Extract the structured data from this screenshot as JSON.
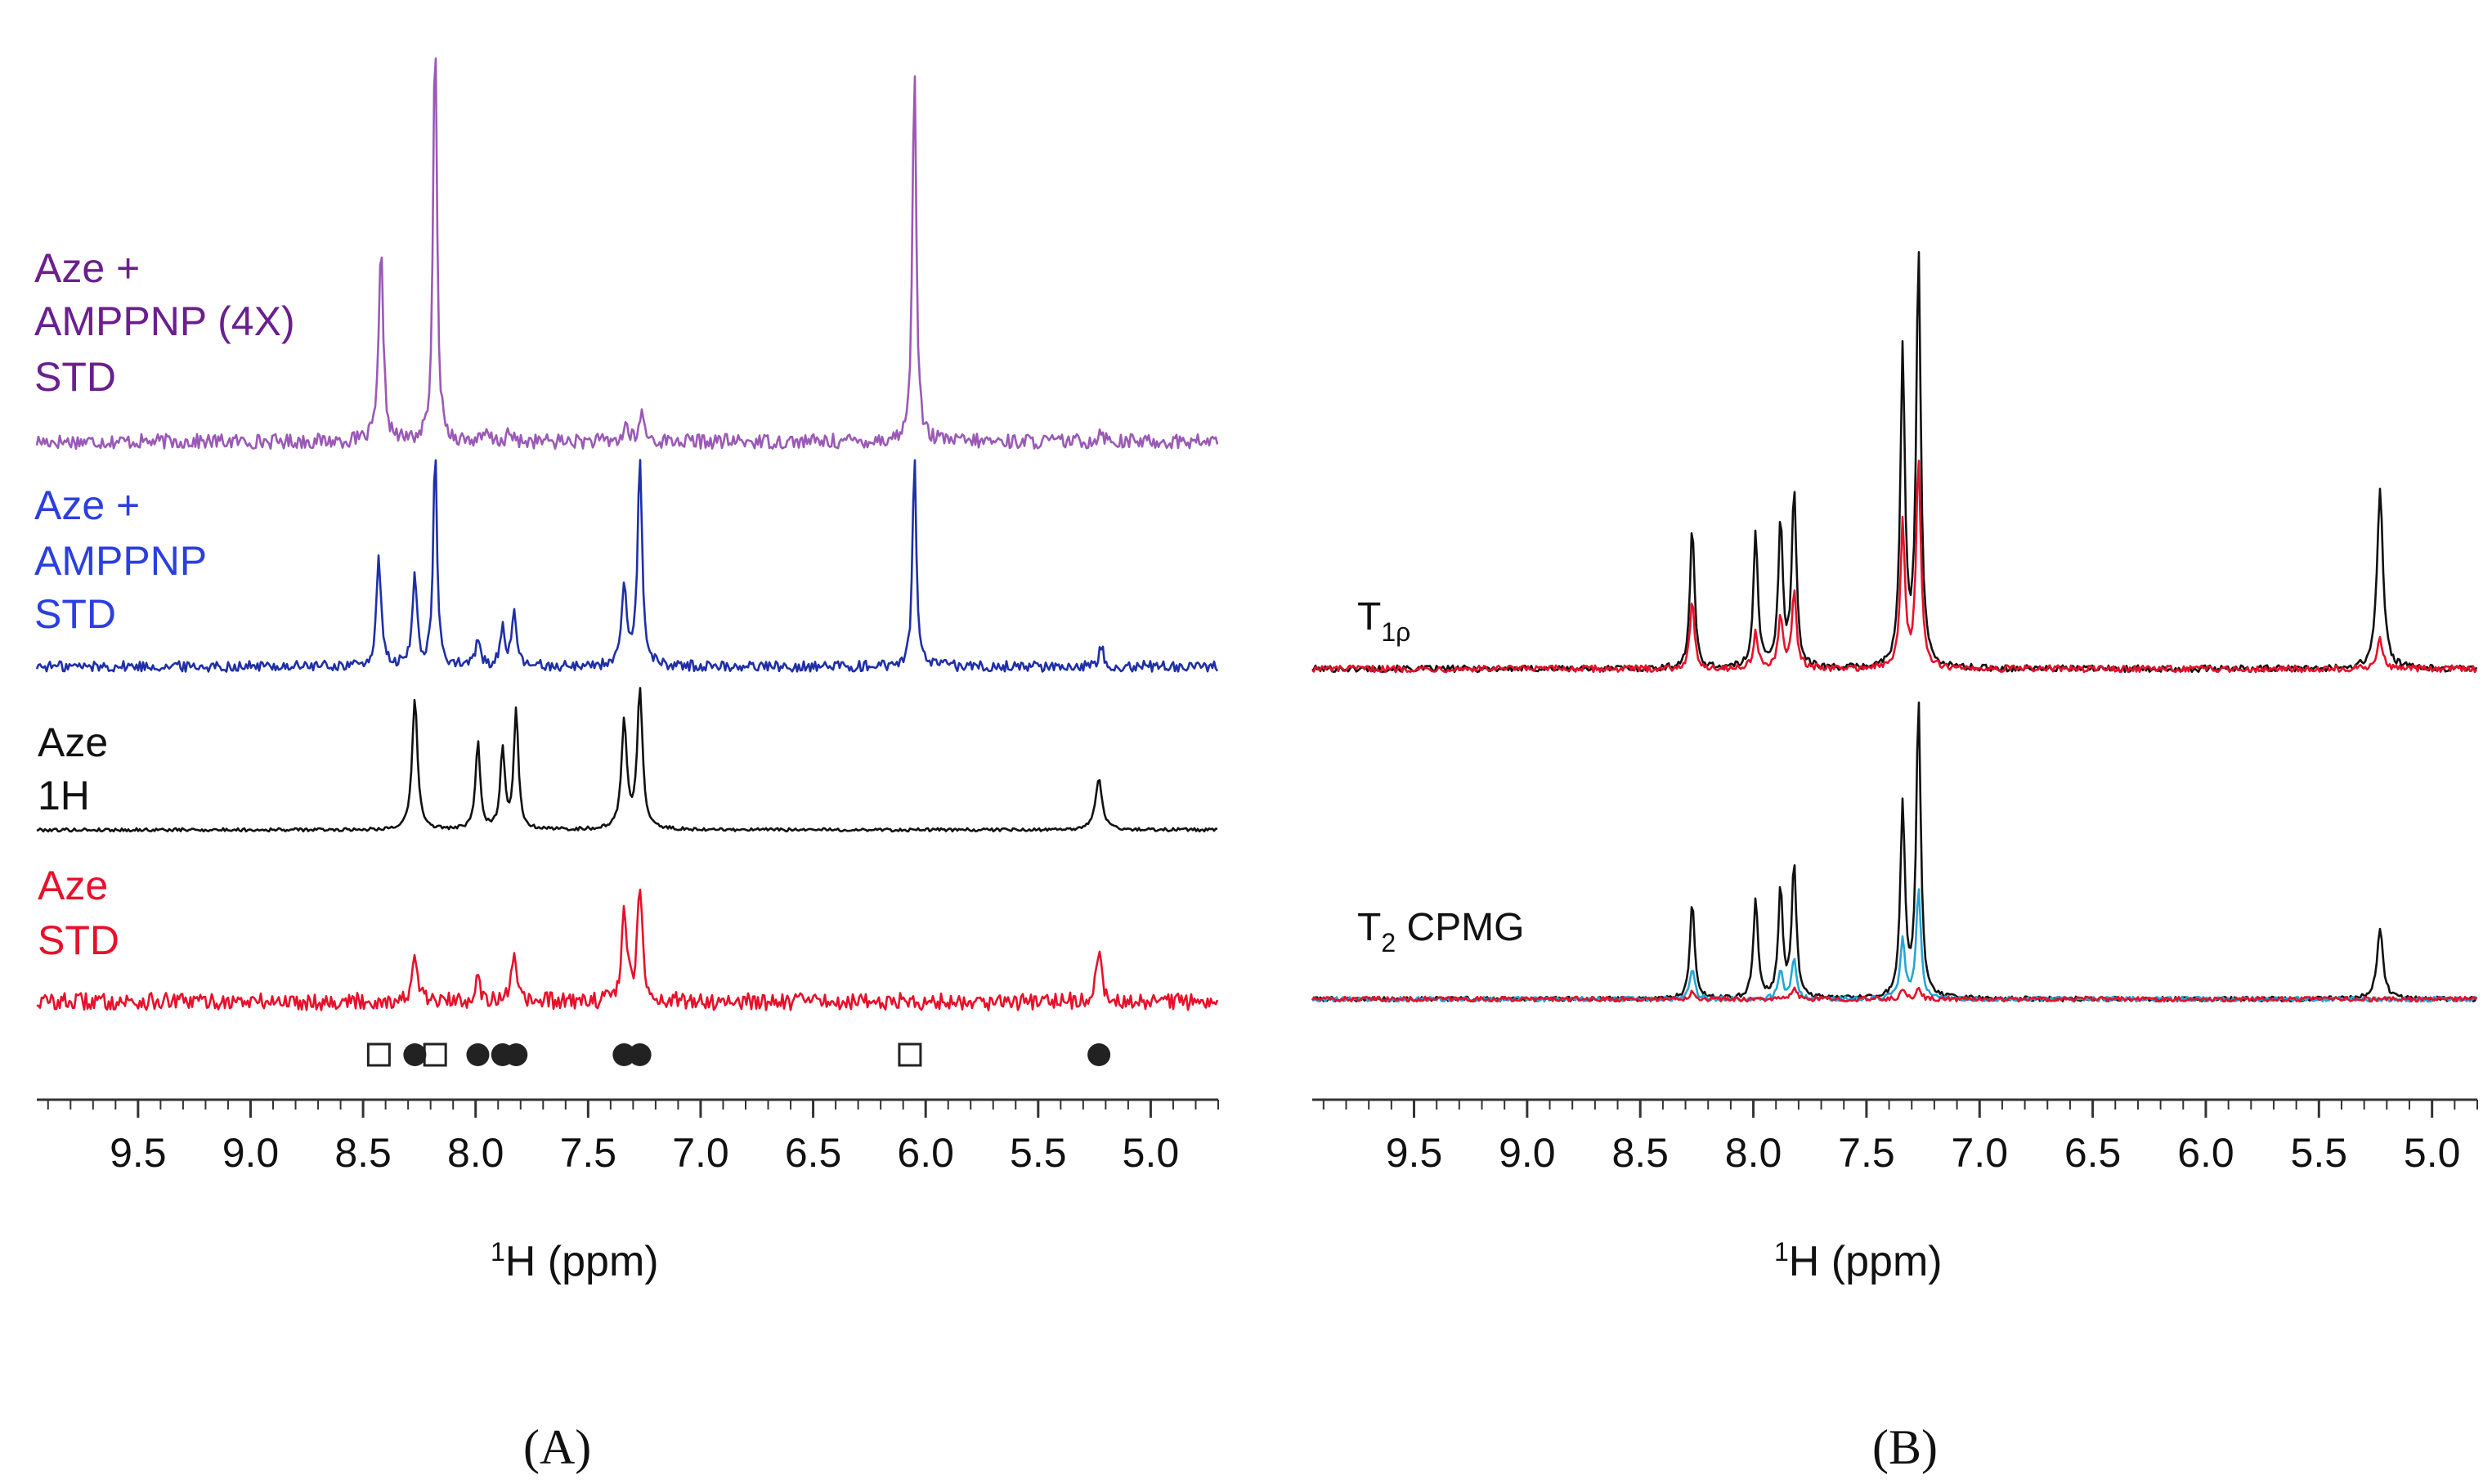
{
  "colors": {
    "purple": "#9b59b6",
    "purple_text": "#6a1f8f",
    "blue": "#1f2fa8",
    "blue_text": "#2b3fe0",
    "black": "#111111",
    "red": "#e8102a",
    "cyan": "#22a6d8",
    "marker": "#222222"
  },
  "chart_data": [
    {
      "type": "line",
      "panel": "A",
      "panel_label": "(A)",
      "xlabel_super": "1",
      "xlabel": "H (ppm)",
      "xlim": [
        9.95,
        4.7
      ],
      "xticks": [
        "9.5",
        "9.0",
        "8.5",
        "8.0",
        "7.5",
        "7.0",
        "6.5",
        "6.0",
        "5.5",
        "5.0"
      ],
      "xtick_values": [
        9.5,
        9.0,
        8.5,
        8.0,
        7.5,
        7.0,
        6.5,
        6.0,
        5.5,
        5.0
      ],
      "series": [
        {
          "name": "Aze + AMPPNP (4X) STD",
          "label_lines": [
            "Aze +",
            "AMPPNP (4X)",
            "STD"
          ],
          "color_key": "purple",
          "noise": 0.018,
          "peaks": [
            [
              8.42,
              0.46,
              0.012
            ],
            [
              8.18,
              1.0,
              0.01
            ],
            [
              7.95,
              0.02,
              0.01
            ],
            [
              7.85,
              0.02,
              0.01
            ],
            [
              7.33,
              0.04,
              0.012
            ],
            [
              7.26,
              0.07,
              0.012
            ],
            [
              6.05,
              0.93,
              0.01
            ],
            [
              5.22,
              0.03,
              0.012
            ]
          ]
        },
        {
          "name": "Aze + AMPPNP STD",
          "label_lines": [
            "Aze +",
            "AMPPNP",
            "STD"
          ],
          "color_key": "blue",
          "noise": 0.025,
          "peaks": [
            [
              8.43,
              0.5,
              0.012
            ],
            [
              8.27,
              0.42,
              0.012
            ],
            [
              8.18,
              1.0,
              0.01
            ],
            [
              7.99,
              0.12,
              0.012
            ],
            [
              7.88,
              0.18,
              0.012
            ],
            [
              7.83,
              0.24,
              0.012
            ],
            [
              7.34,
              0.34,
              0.014
            ],
            [
              7.27,
              0.95,
              0.012
            ],
            [
              6.05,
              0.97,
              0.01
            ],
            [
              5.22,
              0.1,
              0.012
            ]
          ]
        },
        {
          "name": "Aze 1H",
          "label_lines": [
            "Aze",
            "1H"
          ],
          "color_key": "black",
          "noise": 0.012,
          "peaks": [
            [
              8.27,
              0.95,
              0.014
            ],
            [
              7.99,
              0.63,
              0.012
            ],
            [
              7.88,
              0.58,
              0.012
            ],
            [
              7.82,
              0.86,
              0.012
            ],
            [
              7.34,
              0.78,
              0.014
            ],
            [
              7.27,
              1.0,
              0.014
            ],
            [
              5.23,
              0.36,
              0.018
            ]
          ]
        },
        {
          "name": "Aze STD",
          "label_lines": [
            "Aze",
            "STD"
          ],
          "color_key": "red",
          "noise": 0.07,
          "peaks": [
            [
              8.27,
              0.35,
              0.014
            ],
            [
              7.99,
              0.24,
              0.012
            ],
            [
              7.83,
              0.38,
              0.012
            ],
            [
              7.34,
              0.72,
              0.014
            ],
            [
              7.27,
              0.9,
              0.014
            ],
            [
              5.23,
              0.36,
              0.016
            ]
          ]
        }
      ],
      "markers": {
        "open_squares": [
          8.43,
          8.18,
          6.07
        ],
        "filled_circles": [
          8.27,
          7.99,
          7.88,
          7.82,
          7.34,
          7.27,
          5.23
        ]
      }
    },
    {
      "type": "line",
      "panel": "B",
      "panel_label": "(B)",
      "xlabel_super": "1",
      "xlabel": "H (ppm)",
      "xlim": [
        9.95,
        4.8
      ],
      "xticks": [
        "9.5",
        "9.0",
        "8.5",
        "8.0",
        "7.5",
        "7.0",
        "6.5",
        "6.0",
        "5.5",
        "5.0"
      ],
      "xtick_values": [
        9.5,
        9.0,
        8.5,
        8.0,
        7.5,
        7.0,
        6.5,
        6.0,
        5.5,
        5.0
      ],
      "groups": [
        {
          "label_main": "T",
          "label_sub": "1ρ",
          "series": [
            {
              "name": "T1rho black",
              "color_key": "black",
              "peaks": [
                [
                  8.27,
                  0.34,
                  0.012
                ],
                [
                  7.99,
                  0.33,
                  0.012
                ],
                [
                  7.88,
                  0.35,
                  0.012
                ],
                [
                  7.82,
                  0.43,
                  0.012
                ],
                [
                  7.34,
                  0.76,
                  0.012
                ],
                [
                  7.27,
                  1.0,
                  0.012
                ],
                [
                  5.23,
                  0.43,
                  0.016
                ]
              ]
            },
            {
              "name": "T1rho red",
              "color_key": "red",
              "peaks": [
                [
                  8.27,
                  0.16,
                  0.012
                ],
                [
                  7.99,
                  0.09,
                  0.012
                ],
                [
                  7.88,
                  0.12,
                  0.012
                ],
                [
                  7.82,
                  0.19,
                  0.012
                ],
                [
                  7.34,
                  0.35,
                  0.012
                ],
                [
                  7.27,
                  0.51,
                  0.012
                ],
                [
                  5.23,
                  0.07,
                  0.016
                ]
              ]
            }
          ]
        },
        {
          "label_main": "T",
          "label_sub": "2",
          "label_rest": " CPMG",
          "series": [
            {
              "name": "T2 CPMG black",
              "color_key": "black",
              "peaks": [
                [
                  8.27,
                  0.33,
                  0.012
                ],
                [
                  7.99,
                  0.34,
                  0.012
                ],
                [
                  7.88,
                  0.37,
                  0.012
                ],
                [
                  7.82,
                  0.46,
                  0.012
                ],
                [
                  7.34,
                  0.65,
                  0.012
                ],
                [
                  7.27,
                  1.0,
                  0.012
                ],
                [
                  5.23,
                  0.24,
                  0.016
                ]
              ]
            },
            {
              "name": "T2 CPMG cyan",
              "color_key": "cyan",
              "peaks": [
                [
                  8.27,
                  0.1,
                  0.012
                ],
                [
                  7.88,
                  0.1,
                  0.012
                ],
                [
                  7.82,
                  0.14,
                  0.012
                ],
                [
                  7.34,
                  0.2,
                  0.012
                ],
                [
                  7.27,
                  0.38,
                  0.012
                ]
              ]
            },
            {
              "name": "T2 CPMG red",
              "color_key": "red",
              "peaks": [
                [
                  8.27,
                  0.03,
                  0.012
                ],
                [
                  7.82,
                  0.04,
                  0.012
                ],
                [
                  7.34,
                  0.03,
                  0.012
                ],
                [
                  7.27,
                  0.04,
                  0.012
                ]
              ]
            }
          ]
        }
      ]
    }
  ]
}
